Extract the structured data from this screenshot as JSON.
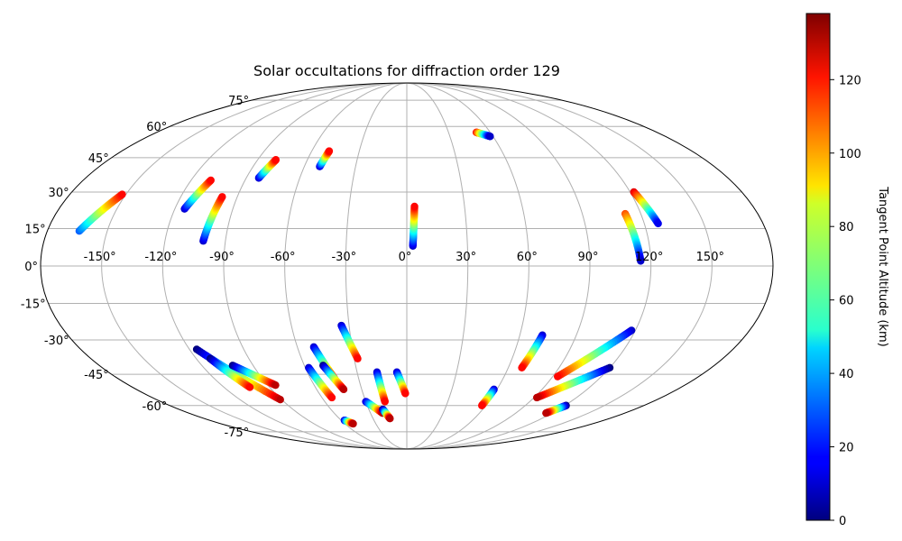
{
  "chart_data": {
    "type": "scatter",
    "projection": "mollweide",
    "title": "Solar occultations for diffraction order 129",
    "longitude_ticks": [
      "-150°",
      "-120°",
      "-90°",
      "-60°",
      "-30°",
      "0°",
      "30°",
      "60°",
      "90°",
      "120°",
      "150°"
    ],
    "latitude_ticks": [
      "75°",
      "60°",
      "45°",
      "30°",
      "15°",
      "0°",
      "-15°",
      "-30°",
      "-45°",
      "-60°",
      "-75°"
    ],
    "grid": true,
    "colorbar": {
      "label": "Tangent Point Altitude (km)",
      "colormap": "jet",
      "range": [
        0,
        138
      ],
      "ticks": [
        "0",
        "20",
        "40",
        "60",
        "80",
        "100",
        "120"
      ],
      "tick_values": [
        0,
        20,
        40,
        60,
        80,
        100,
        120
      ],
      "position": "right"
    },
    "series": [
      {
        "lon": [
          -164,
          -152
        ],
        "lat": [
          14,
          29
        ],
        "alt": [
          30,
          120
        ]
      },
      {
        "lon": [
          -115,
          -109
        ],
        "lat": [
          23,
          35
        ],
        "alt": [
          10,
          120
        ]
      },
      {
        "lon": [
          -101,
          -98
        ],
        "lat": [
          10,
          28
        ],
        "alt": [
          10,
          120
        ]
      },
      {
        "lon": [
          -83,
          -79
        ],
        "lat": [
          36,
          44
        ],
        "alt": [
          10,
          120
        ]
      },
      {
        "lon": [
          -51,
          -49
        ],
        "lat": [
          41,
          48
        ],
        "alt": [
          10,
          120
        ]
      },
      {
        "lon": [
          3,
          4
        ],
        "lat": [
          8,
          24
        ],
        "alt": [
          10,
          120
        ]
      },
      {
        "lon": [
          50,
          58
        ],
        "lat": [
          57,
          55
        ],
        "alt": [
          120,
          10
        ]
      },
      {
        "lon": [
          112,
          115
        ],
        "lat": [
          21,
          2
        ],
        "alt": [
          110,
          10
        ]
      },
      {
        "lon": [
          122,
          127
        ],
        "lat": [
          30,
          17
        ],
        "alt": [
          125,
          15
        ]
      },
      {
        "lon": [
          -116,
          -91
        ],
        "lat": [
          -34,
          -57
        ],
        "alt": [
          0,
          130
        ]
      },
      {
        "lon": [
          -112,
          -103
        ],
        "lat": [
          -38,
          -51
        ],
        "alt": [
          0,
          120
        ]
      },
      {
        "lon": [
          -102,
          -85
        ],
        "lat": [
          -41,
          -50
        ],
        "alt": [
          0,
          130
        ]
      },
      {
        "lon": [
          -58,
          -53
        ],
        "lat": [
          -42,
          -56
        ],
        "alt": [
          10,
          120
        ]
      },
      {
        "lon": [
          -57,
          -52
        ],
        "lat": [
          -68,
          -70
        ],
        "alt": [
          10,
          130
        ]
      },
      {
        "lon": [
          -51,
          -45
        ],
        "lat": [
          -33,
          -47
        ],
        "alt": [
          10,
          120
        ]
      },
      {
        "lon": [
          -49,
          -42
        ],
        "lat": [
          -41,
          -52
        ],
        "alt": [
          0,
          130
        ]
      },
      {
        "lon": [
          -34,
          -28
        ],
        "lat": [
          -24,
          -38
        ],
        "alt": [
          10,
          120
        ]
      },
      {
        "lon": [
          -30,
          -20
        ],
        "lat": [
          -58,
          -64
        ],
        "alt": [
          10,
          130
        ]
      },
      {
        "lon": [
          -18,
          -16
        ],
        "lat": [
          -44,
          -58
        ],
        "alt": [
          10,
          120
        ]
      },
      {
        "lon": [
          -19,
          -15
        ],
        "lat": [
          -62,
          -67
        ],
        "alt": [
          0,
          130
        ]
      },
      {
        "lon": [
          -6,
          -1
        ],
        "lat": [
          -44,
          -54
        ],
        "alt": [
          10,
          120
        ]
      },
      {
        "lon": [
          58,
          57
        ],
        "lat": [
          -52,
          -60
        ],
        "alt": [
          10,
          120
        ]
      },
      {
        "lon": [
          72,
          68
        ],
        "lat": [
          -28,
          -42
        ],
        "alt": [
          10,
          120
        ]
      },
      {
        "lon": [
          118,
          93
        ],
        "lat": [
          -26,
          -46
        ],
        "alt": [
          10,
          120
        ]
      },
      {
        "lon": [
          120,
          92
        ],
        "lat": [
          -42,
          -56
        ],
        "alt": [
          0,
          130
        ]
      },
      {
        "lon": [
          121,
          115
        ],
        "lat": [
          -60,
          -64
        ],
        "alt": [
          0,
          130
        ]
      }
    ]
  }
}
